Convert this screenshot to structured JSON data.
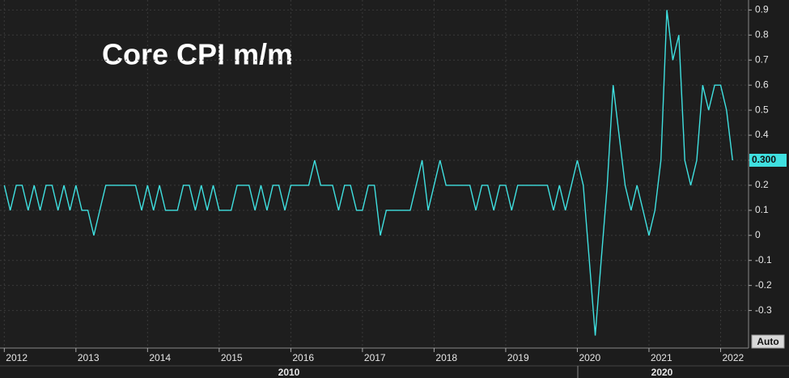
{
  "chart_data": {
    "type": "line",
    "title": "Core CPI m/m",
    "x": [
      2012,
      2012.083,
      2012.167,
      2012.25,
      2012.333,
      2012.417,
      2012.5,
      2012.583,
      2012.667,
      2012.75,
      2012.833,
      2012.917,
      2013,
      2013.083,
      2013.167,
      2013.25,
      2013.333,
      2013.417,
      2013.5,
      2013.583,
      2013.667,
      2013.75,
      2013.833,
      2013.917,
      2014,
      2014.083,
      2014.167,
      2014.25,
      2014.333,
      2014.417,
      2014.5,
      2014.583,
      2014.667,
      2014.75,
      2014.833,
      2014.917,
      2015,
      2015.083,
      2015.167,
      2015.25,
      2015.333,
      2015.417,
      2015.5,
      2015.583,
      2015.667,
      2015.75,
      2015.833,
      2015.917,
      2016,
      2016.083,
      2016.167,
      2016.25,
      2016.333,
      2016.417,
      2016.5,
      2016.583,
      2016.667,
      2016.75,
      2016.833,
      2016.917,
      2017,
      2017.083,
      2017.167,
      2017.25,
      2017.333,
      2017.417,
      2017.5,
      2017.583,
      2017.667,
      2017.75,
      2017.833,
      2017.917,
      2018,
      2018.083,
      2018.167,
      2018.25,
      2018.333,
      2018.417,
      2018.5,
      2018.583,
      2018.667,
      2018.75,
      2018.833,
      2018.917,
      2019,
      2019.083,
      2019.167,
      2019.25,
      2019.333,
      2019.417,
      2019.5,
      2019.583,
      2019.667,
      2019.75,
      2019.833,
      2019.917,
      2020,
      2020.083,
      2020.167,
      2020.25,
      2020.333,
      2020.417,
      2020.5,
      2020.583,
      2020.667,
      2020.75,
      2020.833,
      2020.917,
      2021,
      2021.083,
      2021.167,
      2021.25,
      2021.333,
      2021.417,
      2021.5,
      2021.583,
      2021.667,
      2021.75,
      2021.833,
      2021.917,
      2022,
      2022.083,
      2022.167
    ],
    "values": [
      0.2,
      0.1,
      0.2,
      0.2,
      0.1,
      0.2,
      0.1,
      0.2,
      0.2,
      0.1,
      0.2,
      0.1,
      0.2,
      0.1,
      0.1,
      0.0,
      0.1,
      0.2,
      0.2,
      0.2,
      0.2,
      0.2,
      0.2,
      0.1,
      0.2,
      0.1,
      0.2,
      0.1,
      0.1,
      0.1,
      0.2,
      0.2,
      0.1,
      0.2,
      0.1,
      0.2,
      0.1,
      0.1,
      0.1,
      0.2,
      0.2,
      0.2,
      0.1,
      0.2,
      0.1,
      0.2,
      0.2,
      0.1,
      0.2,
      0.2,
      0.2,
      0.2,
      0.3,
      0.2,
      0.2,
      0.2,
      0.1,
      0.2,
      0.2,
      0.1,
      0.1,
      0.2,
      0.2,
      0.0,
      0.1,
      0.1,
      0.1,
      0.1,
      0.1,
      0.2,
      0.3,
      0.1,
      0.2,
      0.3,
      0.2,
      0.2,
      0.2,
      0.2,
      0.2,
      0.1,
      0.2,
      0.2,
      0.1,
      0.2,
      0.2,
      0.1,
      0.2,
      0.2,
      0.2,
      0.2,
      0.2,
      0.2,
      0.1,
      0.2,
      0.1,
      0.2,
      0.3,
      0.2,
      -0.1,
      -0.4,
      -0.1,
      0.2,
      0.6,
      0.4,
      0.2,
      0.1,
      0.2,
      0.1,
      0.0,
      0.1,
      0.3,
      0.9,
      0.7,
      0.8,
      0.3,
      0.2,
      0.3,
      0.6,
      0.5,
      0.6,
      0.6,
      0.5,
      0.3
    ],
    "color": "#3fe0e0",
    "xlim": [
      2011.94,
      2022.39
    ],
    "xticks": [
      2012,
      2013,
      2014,
      2015,
      2016,
      2017,
      2018,
      2019,
      2020,
      2021,
      2022
    ],
    "x_group_labels": [
      "2010",
      "2020"
    ],
    "ylim": [
      -0.45,
      0.94
    ],
    "yticks": [
      0.9,
      0.8,
      0.7,
      0.6,
      0.5,
      0.4,
      0.3,
      0.2,
      0.1,
      0,
      -0.1,
      -0.2,
      -0.3
    ],
    "grid": true,
    "current_value": {
      "value": 0.3,
      "label": "0.300"
    },
    "scale_button": "Auto"
  }
}
